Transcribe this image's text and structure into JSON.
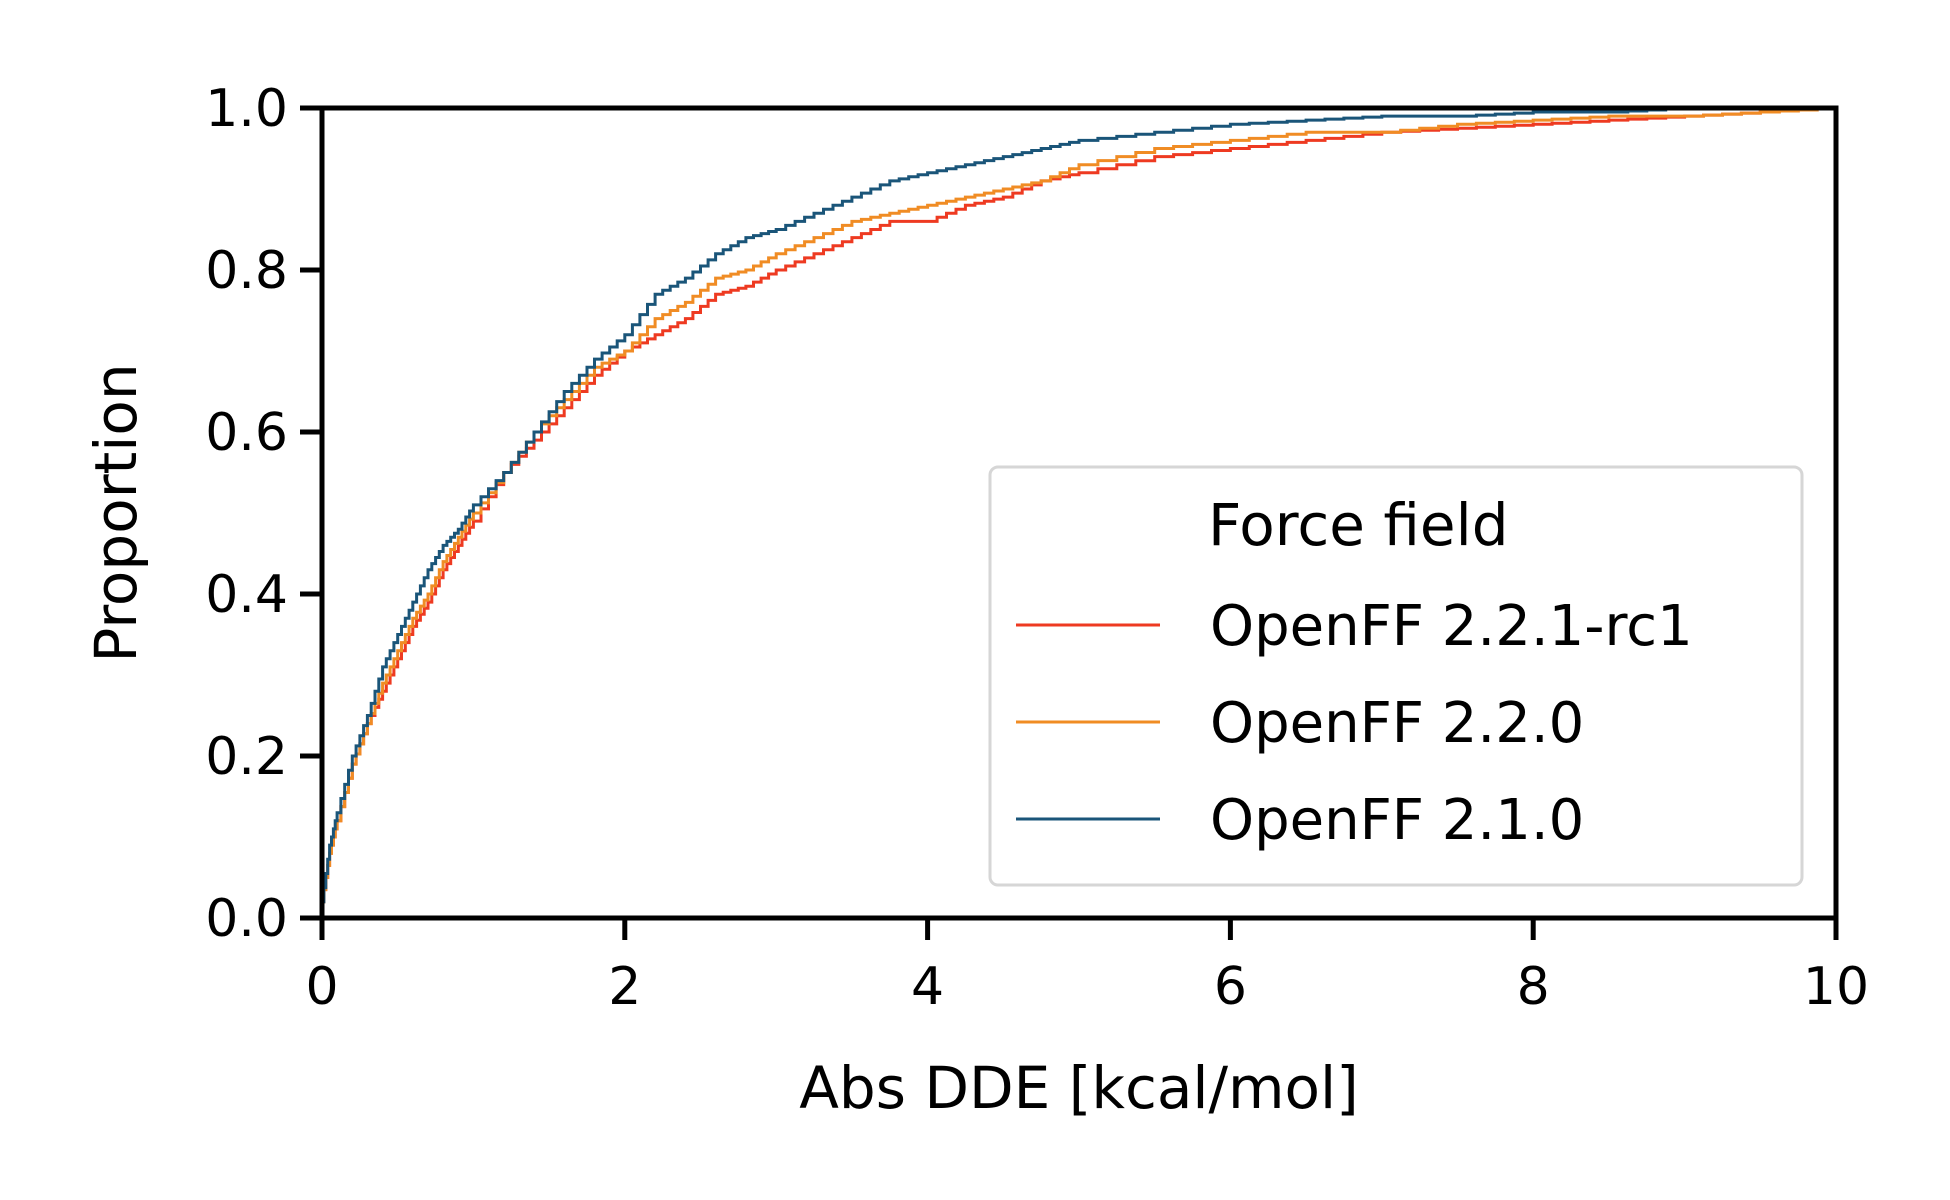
{
  "chart_data": {
    "type": "line",
    "title": "",
    "xlabel": "Abs DDE [kcal/mol]",
    "ylabel": "Proportion",
    "xlim": [
      0,
      10
    ],
    "ylim": [
      0,
      1
    ],
    "xticks": [
      "0",
      "2",
      "4",
      "6",
      "8",
      "10"
    ],
    "yticks": [
      "0.0",
      "0.2",
      "0.4",
      "0.6",
      "0.8",
      "1.0"
    ],
    "grid": false,
    "legend": {
      "title": "Force field",
      "placement": "lower-right"
    },
    "series": [
      {
        "name": "OpenFF 2.2.1-rc1",
        "color": "#ee3a21",
        "x": [
          0,
          0.05,
          0.1,
          0.2,
          0.3,
          0.4,
          0.5,
          0.6,
          0.7,
          0.8,
          0.9,
          1.0,
          1.2,
          1.4,
          1.6,
          1.8,
          2.0,
          2.2,
          2.4,
          2.6,
          2.8,
          3.0,
          3.25,
          3.5,
          3.75,
          4.0,
          4.25,
          4.5,
          4.75,
          5.0,
          5.5,
          6.0,
          6.5,
          7.0,
          7.5,
          8.0,
          8.5,
          9.0,
          9.5,
          10.0
        ],
        "y": [
          0.02,
          0.08,
          0.12,
          0.19,
          0.24,
          0.28,
          0.32,
          0.36,
          0.39,
          0.43,
          0.46,
          0.49,
          0.55,
          0.59,
          0.63,
          0.67,
          0.7,
          0.72,
          0.74,
          0.77,
          0.78,
          0.8,
          0.82,
          0.84,
          0.86,
          0.86,
          0.88,
          0.89,
          0.91,
          0.92,
          0.94,
          0.95,
          0.96,
          0.97,
          0.975,
          0.98,
          0.985,
          0.99,
          0.995,
          1.0
        ]
      },
      {
        "name": "OpenFF 2.2.0",
        "color": "#f08c24",
        "x": [
          0,
          0.05,
          0.1,
          0.2,
          0.3,
          0.4,
          0.5,
          0.6,
          0.7,
          0.8,
          0.9,
          1.0,
          1.2,
          1.4,
          1.6,
          1.8,
          2.0,
          2.2,
          2.4,
          2.6,
          2.8,
          3.0,
          3.25,
          3.5,
          3.75,
          4.0,
          4.25,
          4.5,
          4.75,
          5.0,
          5.5,
          6.0,
          6.5,
          7.0,
          7.5,
          8.0,
          8.5,
          9.0,
          9.5,
          10.0
        ],
        "y": [
          0.02,
          0.08,
          0.12,
          0.19,
          0.24,
          0.29,
          0.33,
          0.37,
          0.4,
          0.44,
          0.47,
          0.5,
          0.55,
          0.6,
          0.64,
          0.68,
          0.7,
          0.74,
          0.76,
          0.79,
          0.8,
          0.82,
          0.84,
          0.86,
          0.87,
          0.88,
          0.89,
          0.9,
          0.91,
          0.93,
          0.95,
          0.96,
          0.97,
          0.97,
          0.98,
          0.985,
          0.99,
          0.99,
          0.995,
          1.0
        ]
      },
      {
        "name": "OpenFF 2.1.0",
        "color": "#1a5579",
        "x": [
          0,
          0.05,
          0.1,
          0.2,
          0.3,
          0.4,
          0.5,
          0.6,
          0.7,
          0.8,
          0.9,
          1.0,
          1.2,
          1.4,
          1.6,
          1.8,
          2.0,
          2.2,
          2.4,
          2.6,
          2.8,
          3.0,
          3.25,
          3.5,
          3.75,
          4.0,
          4.25,
          4.5,
          4.75,
          5.0,
          5.5,
          6.0,
          6.5,
          7.0,
          7.5,
          8.0,
          8.5,
          9.0,
          9.5,
          10.0
        ],
        "y": [
          0.02,
          0.09,
          0.13,
          0.2,
          0.25,
          0.31,
          0.35,
          0.39,
          0.43,
          0.46,
          0.48,
          0.51,
          0.55,
          0.6,
          0.65,
          0.69,
          0.72,
          0.77,
          0.79,
          0.82,
          0.84,
          0.85,
          0.87,
          0.89,
          0.91,
          0.92,
          0.93,
          0.94,
          0.95,
          0.96,
          0.97,
          0.98,
          0.985,
          0.99,
          0.99,
          0.995,
          0.995,
          1.0,
          1.0,
          1.0
        ]
      }
    ]
  }
}
